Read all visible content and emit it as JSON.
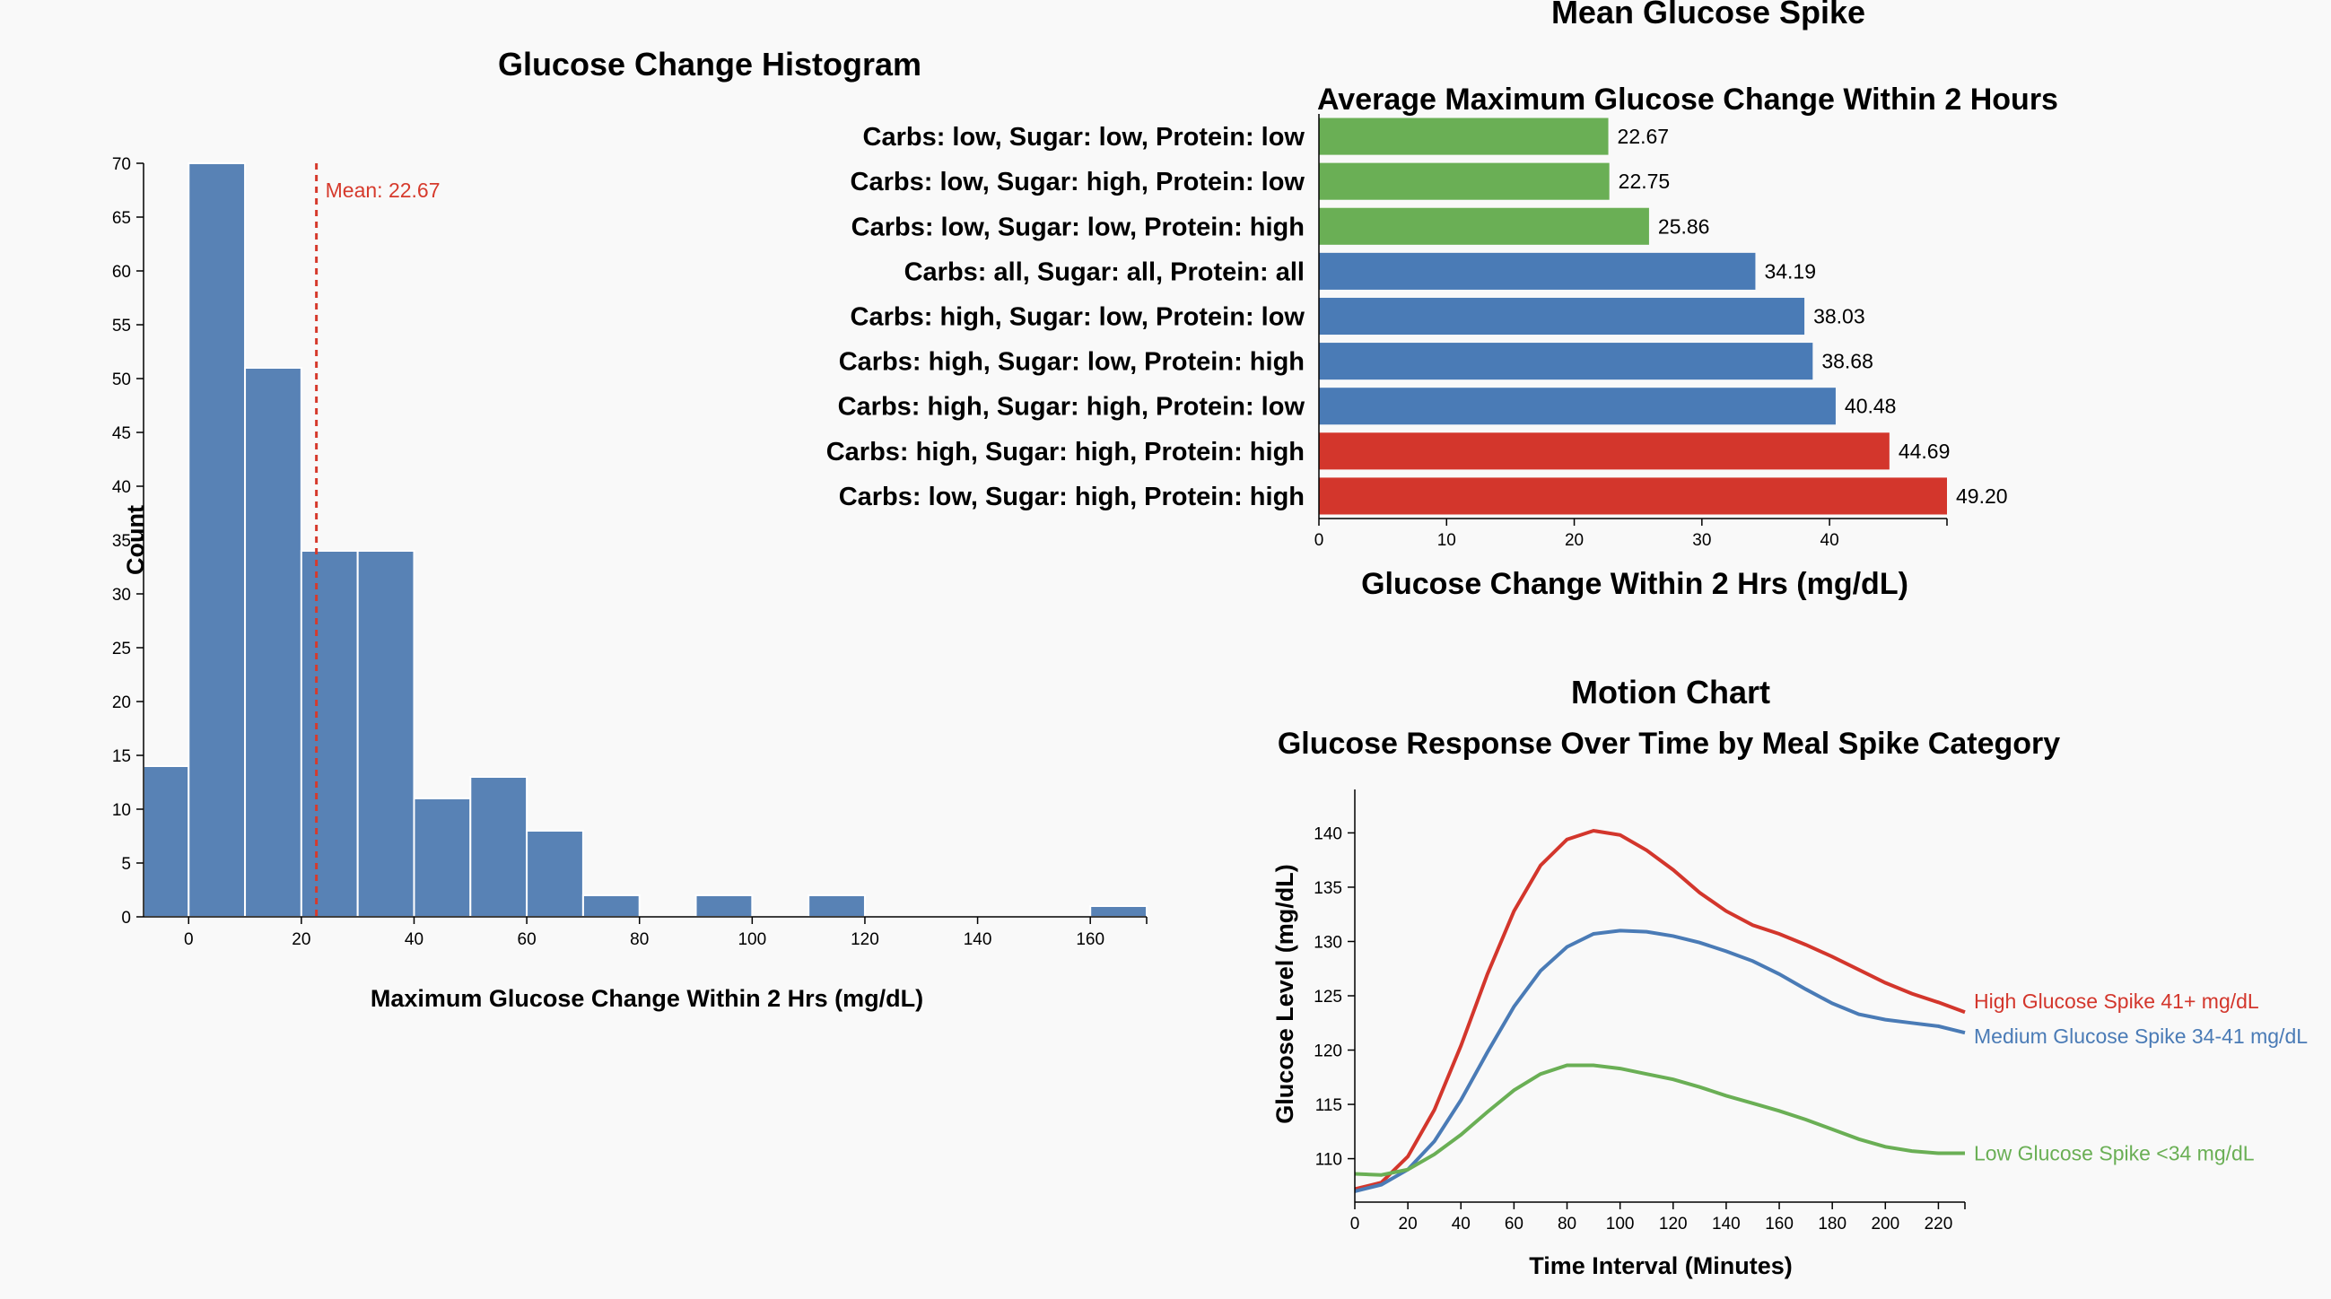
{
  "chart_data": [
    {
      "type": "bar",
      "id": "histogram",
      "title": "Glucose Change Histogram",
      "xlabel": "Maximum Glucose Change Within 2 Hrs (mg/dL)",
      "ylabel": "Count",
      "xlim": [
        -8,
        170
      ],
      "ylim": [
        0,
        70
      ],
      "xticks": [
        0,
        20,
        40,
        60,
        80,
        100,
        120,
        140,
        160
      ],
      "yticks": [
        0,
        5,
        10,
        15,
        20,
        25,
        30,
        35,
        40,
        45,
        50,
        55,
        60,
        65,
        70
      ],
      "bins": [
        {
          "x0": -8,
          "x1": 0,
          "count": 14
        },
        {
          "x0": 0,
          "x1": 10,
          "count": 70
        },
        {
          "x0": 10,
          "x1": 20,
          "count": 51
        },
        {
          "x0": 20,
          "x1": 30,
          "count": 34
        },
        {
          "x0": 30,
          "x1": 40,
          "count": 34
        },
        {
          "x0": 40,
          "x1": 50,
          "count": 11
        },
        {
          "x0": 50,
          "x1": 60,
          "count": 13
        },
        {
          "x0": 60,
          "x1": 70,
          "count": 8
        },
        {
          "x0": 70,
          "x1": 80,
          "count": 2
        },
        {
          "x0": 90,
          "x1": 100,
          "count": 2
        },
        {
          "x0": 110,
          "x1": 120,
          "count": 2
        },
        {
          "x0": 160,
          "x1": 170,
          "count": 1
        }
      ],
      "mean": 22.67,
      "mean_label": "Mean: 22.67",
      "colors": {
        "bar": "#5882b5",
        "mean": "#d63a2c"
      }
    },
    {
      "type": "bar",
      "id": "mean_spike",
      "orientation": "horizontal",
      "title": "Mean Glucose Spike",
      "subtitle": "Average Maximum Glucose Change Within 2 Hours",
      "xlabel": "Glucose Change Within 2 Hrs (mg/dL)",
      "xlim": [
        0,
        49.2
      ],
      "xticks": [
        0,
        10,
        20,
        30,
        40
      ],
      "categories": [
        "Carbs: low, Sugar: low, Protein: low",
        "Carbs: low, Sugar: high, Protein: low",
        "Carbs: low, Sugar: low, Protein: high",
        "Carbs: all, Sugar: all, Protein: all",
        "Carbs: high, Sugar: low, Protein: low",
        "Carbs: high, Sugar: low, Protein: high",
        "Carbs: high, Sugar: high, Protein: low",
        "Carbs: high, Sugar: high, Protein: high",
        "Carbs: low, Sugar: high, Protein: high"
      ],
      "values": [
        22.67,
        22.75,
        25.86,
        34.19,
        38.03,
        38.68,
        40.48,
        44.69,
        49.2
      ],
      "value_labels": [
        "22.67",
        "22.75",
        "25.86",
        "34.19",
        "38.03",
        "38.68",
        "40.48",
        "44.69",
        "49.20"
      ],
      "bar_colors": [
        "#6aaf55",
        "#6aaf55",
        "#6aaf55",
        "#4a7bb6",
        "#4a7bb6",
        "#4a7bb6",
        "#4a7bb6",
        "#d3362c",
        "#d3362c"
      ]
    },
    {
      "type": "line",
      "id": "motion",
      "title": "Motion Chart",
      "subtitle": "Glucose Response Over Time by Meal Spike Category",
      "xlabel": "Time Interval (Minutes)",
      "ylabel": "Glucose Level (mg/dL)",
      "xlim": [
        0,
        230
      ],
      "ylim": [
        106,
        144
      ],
      "xticks": [
        0,
        20,
        40,
        60,
        80,
        100,
        120,
        140,
        160,
        180,
        200,
        220
      ],
      "yticks": [
        110,
        115,
        120,
        125,
        130,
        135,
        140
      ],
      "x": [
        0,
        10,
        20,
        30,
        40,
        50,
        60,
        70,
        80,
        90,
        100,
        110,
        120,
        130,
        140,
        150,
        160,
        170,
        180,
        190,
        200,
        210,
        220,
        230
      ],
      "series": [
        {
          "name": "High Glucose Spike 41+ mg/dL",
          "color": "#d3362c",
          "values": [
            107.2,
            107.8,
            110.2,
            114.5,
            120.4,
            127.0,
            132.8,
            137.0,
            139.4,
            140.2,
            139.8,
            138.4,
            136.6,
            134.5,
            132.8,
            131.5,
            130.7,
            129.7,
            128.6,
            127.4,
            126.2,
            125.2,
            124.4,
            123.5
          ]
        },
        {
          "name": "Medium Glucose Spike 34-41 mg/dL",
          "color": "#4a7bb6",
          "values": [
            107.0,
            107.6,
            109.0,
            111.6,
            115.4,
            119.8,
            124.0,
            127.3,
            129.5,
            130.7,
            131.0,
            130.9,
            130.5,
            129.9,
            129.1,
            128.2,
            127.0,
            125.6,
            124.3,
            123.3,
            122.8,
            122.5,
            122.2,
            121.6
          ]
        },
        {
          "name": "Low Glucose Spike <34 mg/dL",
          "color": "#6aaf55",
          "values": [
            108.6,
            108.5,
            109.0,
            110.4,
            112.2,
            114.3,
            116.3,
            117.8,
            118.6,
            118.6,
            118.3,
            117.8,
            117.3,
            116.6,
            115.8,
            115.1,
            114.4,
            113.6,
            112.7,
            111.8,
            111.1,
            110.7,
            110.5,
            110.5
          ]
        }
      ]
    }
  ]
}
